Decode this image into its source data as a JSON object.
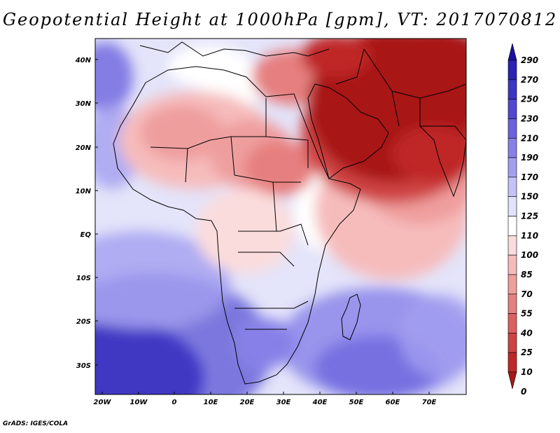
{
  "title": "Geopotential Height at 1000hPa [gpm], VT: 2017070812",
  "footer": "GrADS: IGES/COLA",
  "lat_labels": [
    "40N",
    "30N",
    "20N",
    "10N",
    "EQ",
    "10S",
    "20S",
    "30S"
  ],
  "lon_labels": [
    "20W",
    "10W",
    "0",
    "10E",
    "20E",
    "30E",
    "40E",
    "50E",
    "60E",
    "70E"
  ],
  "colorbar": {
    "levels": [
      "290",
      "270",
      "250",
      "230",
      "210",
      "190",
      "170",
      "150",
      "125",
      "110",
      "100",
      "85",
      "70",
      "55",
      "40",
      "25",
      "10",
      "0"
    ],
    "colors": [
      "#1a0fa0",
      "#2a22b4",
      "#3b35c4",
      "#5048d2",
      "#6a63de",
      "#8680e8",
      "#a39ff0",
      "#c4c2f6",
      "#e2e2fa",
      "#ffffff",
      "#fbdcdc",
      "#f6bcbc",
      "#ef9e9e",
      "#e67f7f",
      "#dc6060",
      "#cf4242",
      "#bf2828",
      "#a81818"
    ]
  },
  "regions": [
    {
      "name": "sahara-west-low",
      "value": "85"
    },
    {
      "name": "arabia-india-low",
      "value": "0"
    },
    {
      "name": "south-indian-ocean-high",
      "value": "190"
    },
    {
      "name": "south-atlantic-high",
      "value": "270"
    }
  ]
}
